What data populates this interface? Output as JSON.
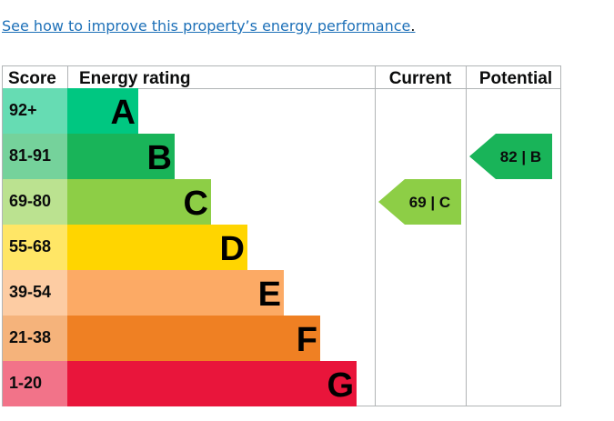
{
  "link": {
    "text": "See how to improve this property’s energy performance",
    "punct": "."
  },
  "chart_data": {
    "type": "table",
    "headers": {
      "score": "Score",
      "rating": "Energy rating",
      "current": "Current",
      "potential": "Potential"
    },
    "bands": [
      {
        "letter": "A",
        "range": "92+",
        "color": "#00c781",
        "scoreColor": "#66dcb3"
      },
      {
        "letter": "B",
        "range": "81-91",
        "color": "#19b459",
        "scoreColor": "#75d29b"
      },
      {
        "letter": "C",
        "range": "69-80",
        "color": "#8dce46",
        "scoreColor": "#bbe290"
      },
      {
        "letter": "D",
        "range": "55-68",
        "color": "#ffd500",
        "scoreColor": "#ffe666"
      },
      {
        "letter": "E",
        "range": "39-54",
        "color": "#fcaa65",
        "scoreColor": "#fdcca3"
      },
      {
        "letter": "F",
        "range": "21-38",
        "color": "#ef8023",
        "scoreColor": "#f5b37b"
      },
      {
        "letter": "G",
        "range": "1-20",
        "color": "#e9153b",
        "scoreColor": "#f27389"
      }
    ],
    "current": {
      "value": 69,
      "band": "C",
      "label": "69 | C"
    },
    "potential": {
      "value": 82,
      "band": "B",
      "label": "82 | B"
    }
  }
}
